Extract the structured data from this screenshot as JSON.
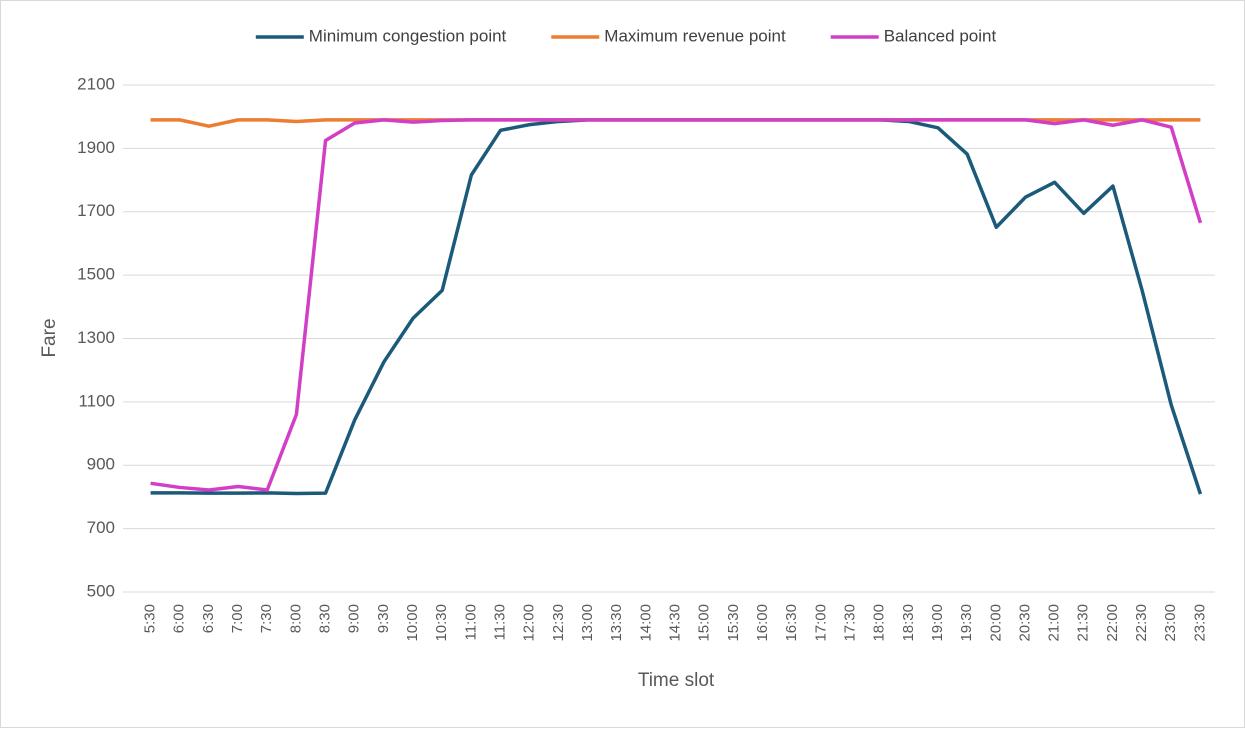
{
  "chart_data": {
    "type": "line",
    "x_label": "Time slot",
    "y_label": "Fare",
    "categories": [
      "5:30",
      "6:00",
      "6:30",
      "7:00",
      "7:30",
      "8:00",
      "8:30",
      "9:00",
      "9:30",
      "10:00",
      "10:30",
      "11:00",
      "11:30",
      "12:00",
      "12:30",
      "13:00",
      "13:30",
      "14:00",
      "14:30",
      "15:00",
      "15:30",
      "16:00",
      "16:30",
      "17:00",
      "17:30",
      "18:00",
      "18:30",
      "19:00",
      "19:30",
      "20:00",
      "20:30",
      "21:00",
      "21:30",
      "22:00",
      "22:30",
      "23:00",
      "23:30"
    ],
    "series": [
      {
        "name": "Minimum congestion point",
        "color": "#1b5a7a",
        "values": [
          813,
          813,
          812,
          812,
          813,
          811,
          812,
          1043,
          1226,
          1364,
          1452,
          1816,
          1957,
          1975,
          1985,
          1990,
          1990,
          1990,
          1990,
          1990,
          1990,
          1990,
          1990,
          1990,
          1990,
          1990,
          1985,
          1965,
          1882,
          1651,
          1746,
          1793,
          1695,
          1781,
          1452,
          1090,
          809
        ]
      },
      {
        "name": "Maximum revenue point",
        "color": "#ed7d31",
        "values": [
          1990,
          1990,
          1970,
          1990,
          1990,
          1985,
          1990,
          1990,
          1990,
          1990,
          1990,
          1990,
          1990,
          1990,
          1990,
          1990,
          1990,
          1990,
          1990,
          1990,
          1990,
          1990,
          1990,
          1990,
          1990,
          1990,
          1990,
          1990,
          1990,
          1990,
          1990,
          1990,
          1990,
          1990,
          1990,
          1990,
          1990
        ]
      },
      {
        "name": "Balanced point",
        "color": "#d23fc6",
        "values": [
          843,
          830,
          822,
          833,
          822,
          1060,
          1925,
          1980,
          1990,
          1983,
          1988,
          1990,
          1990,
          1990,
          1990,
          1990,
          1990,
          1990,
          1990,
          1990,
          1990,
          1990,
          1990,
          1990,
          1990,
          1990,
          1990,
          1990,
          1990,
          1990,
          1990,
          1978,
          1990,
          1973,
          1990,
          1967,
          1665
        ]
      }
    ],
    "ylim": [
      500,
      2100
    ],
    "yticks": [
      500,
      700,
      900,
      1100,
      1300,
      1500,
      1700,
      1900,
      2100
    ],
    "grid": true,
    "legend": "top"
  }
}
